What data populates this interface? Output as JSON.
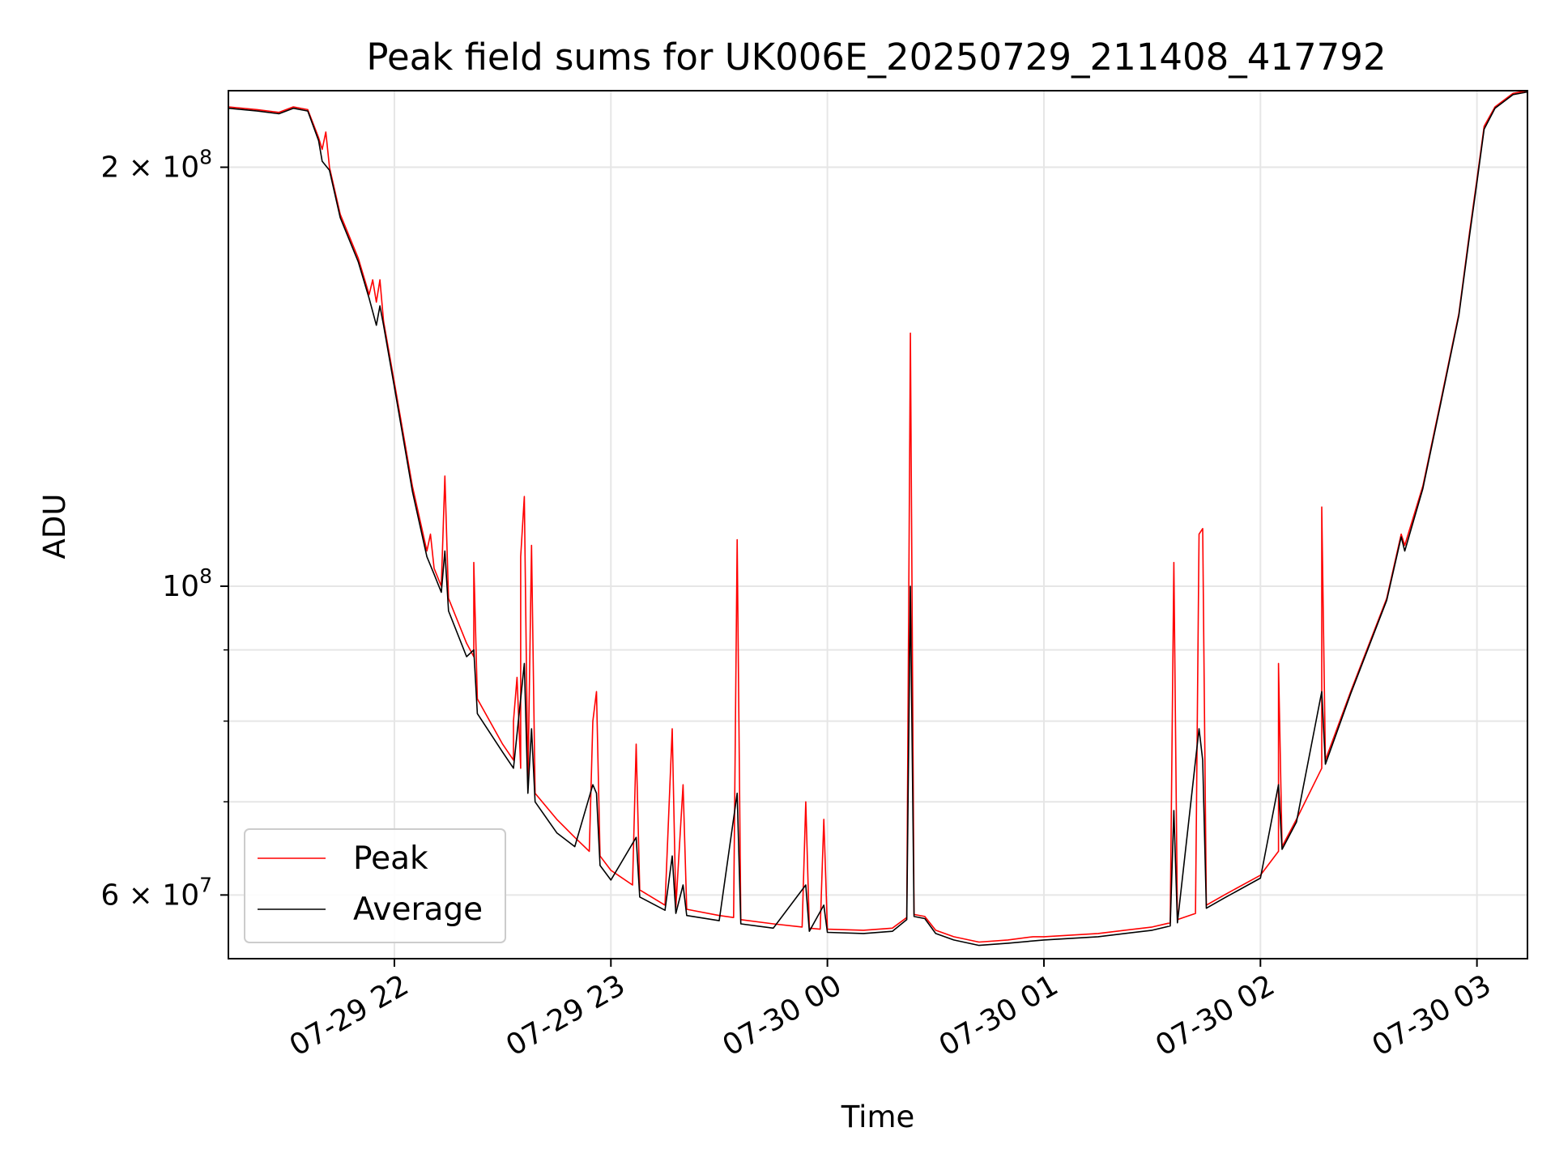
{
  "chart_data": {
    "type": "line",
    "title": "Peak field sums for UK006E_20250729_211408_417792",
    "xlabel": "Time",
    "ylabel": "ADU",
    "yscale": "log",
    "xlim": [
      "2025-07-29 21:14",
      "2025-07-30 03:14"
    ],
    "ylim": [
      54000000,
      227000000
    ],
    "grid": true,
    "legend_position": "lower-left",
    "x_ticks": [
      {
        "value": "2025-07-29 22:00",
        "label": "07-29 22"
      },
      {
        "value": "2025-07-29 23:00",
        "label": "07-29 23"
      },
      {
        "value": "2025-07-30 00:00",
        "label": "07-30 00"
      },
      {
        "value": "2025-07-30 01:00",
        "label": "07-30 01"
      },
      {
        "value": "2025-07-30 02:00",
        "label": "07-30 02"
      },
      {
        "value": "2025-07-30 03:00",
        "label": "07-30 03"
      }
    ],
    "y_ticks_major": [
      {
        "value": 60000000,
        "mantissa": "6 × 10",
        "exp": "7"
      },
      {
        "value": 100000000,
        "mantissa": "10",
        "exp": "8"
      },
      {
        "value": 200000000,
        "mantissa": "2 × 10",
        "exp": "8"
      }
    ],
    "y_ticks_minor": [
      70000000,
      80000000,
      90000000
    ],
    "series": [
      {
        "name": "Peak",
        "color": "#ff0000",
        "points": [
          [
            "2025-07-29 21:14",
            221000000
          ],
          [
            "2025-07-29 21:22",
            220000000
          ],
          [
            "2025-07-29 21:28",
            219000000
          ],
          [
            "2025-07-29 21:32",
            221000000
          ],
          [
            "2025-07-29 21:36",
            220000000
          ],
          [
            "2025-07-29 21:39",
            210000000
          ],
          [
            "2025-07-29 21:40",
            206000000
          ],
          [
            "2025-07-29 21:41",
            212000000
          ],
          [
            "2025-07-29 21:42",
            200000000
          ],
          [
            "2025-07-29 21:45",
            185000000
          ],
          [
            "2025-07-29 21:50",
            172000000
          ],
          [
            "2025-07-29 21:53",
            162000000
          ],
          [
            "2025-07-29 21:54",
            166000000
          ],
          [
            "2025-07-29 21:55",
            160000000
          ],
          [
            "2025-07-29 21:56",
            166000000
          ],
          [
            "2025-07-29 21:57",
            155000000
          ],
          [
            "2025-07-29 22:00",
            140000000
          ],
          [
            "2025-07-29 22:05",
            118000000
          ],
          [
            "2025-07-29 22:09",
            106000000
          ],
          [
            "2025-07-29 22:10",
            109000000
          ],
          [
            "2025-07-29 22:11",
            103000000
          ],
          [
            "2025-07-29 22:13",
            100000000
          ],
          [
            "2025-07-29 22:14",
            120000000
          ],
          [
            "2025-07-29 22:15",
            98000000
          ],
          [
            "2025-07-29 22:20",
            91000000
          ],
          [
            "2025-07-29 22:22",
            89000000
          ],
          [
            "2025-07-29 22:22",
            104000000
          ],
          [
            "2025-07-29 22:23",
            83000000
          ],
          [
            "2025-07-29 22:30",
            77000000
          ],
          [
            "2025-07-29 22:33",
            75000000
          ],
          [
            "2025-07-29 22:33",
            80000000
          ],
          [
            "2025-07-29 22:34",
            86000000
          ],
          [
            "2025-07-29 22:35",
            74000000
          ],
          [
            "2025-07-29 22:35",
            105000000
          ],
          [
            "2025-07-29 22:36",
            116000000
          ],
          [
            "2025-07-29 22:37",
            72000000
          ],
          [
            "2025-07-29 22:38",
            107000000
          ],
          [
            "2025-07-29 22:39",
            71000000
          ],
          [
            "2025-07-29 22:45",
            68000000
          ],
          [
            "2025-07-29 22:50",
            66000000
          ],
          [
            "2025-07-29 22:54",
            64500000
          ],
          [
            "2025-07-29 22:55",
            80000000
          ],
          [
            "2025-07-29 22:56",
            84000000
          ],
          [
            "2025-07-29 22:57",
            64000000
          ],
          [
            "2025-07-29 23:00",
            62500000
          ],
          [
            "2025-07-29 23:06",
            61000000
          ],
          [
            "2025-07-29 23:07",
            77000000
          ],
          [
            "2025-07-29 23:08",
            60500000
          ],
          [
            "2025-07-29 23:15",
            59000000
          ],
          [
            "2025-07-29 23:17",
            79000000
          ],
          [
            "2025-07-29 23:18",
            58800000
          ],
          [
            "2025-07-29 23:20",
            72000000
          ],
          [
            "2025-07-29 23:21",
            58600000
          ],
          [
            "2025-07-29 23:30",
            58000000
          ],
          [
            "2025-07-29 23:34",
            57800000
          ],
          [
            "2025-07-29 23:35",
            108000000
          ],
          [
            "2025-07-29 23:36",
            57600000
          ],
          [
            "2025-07-29 23:45",
            57200000
          ],
          [
            "2025-07-29 23:53",
            56900000
          ],
          [
            "2025-07-29 23:54",
            70000000
          ],
          [
            "2025-07-29 23:55",
            56800000
          ],
          [
            "2025-07-29 23:58",
            56700000
          ],
          [
            "2025-07-29 23:59",
            68000000
          ],
          [
            "2025-07-30 00:00",
            56700000
          ],
          [
            "2025-07-30 00:10",
            56600000
          ],
          [
            "2025-07-30 00:18",
            56800000
          ],
          [
            "2025-07-30 00:22",
            57800000
          ],
          [
            "2025-07-30 00:23",
            152000000
          ],
          [
            "2025-07-30 00:24",
            58100000
          ],
          [
            "2025-07-30 00:27",
            57900000
          ],
          [
            "2025-07-30 00:30",
            56600000
          ],
          [
            "2025-07-30 00:35",
            56000000
          ],
          [
            "2025-07-30 00:42",
            55500000
          ],
          [
            "2025-07-30 00:50",
            55700000
          ],
          [
            "2025-07-30 00:57",
            56000000
          ],
          [
            "2025-07-30 01:00",
            56000000
          ],
          [
            "2025-07-30 01:15",
            56300000
          ],
          [
            "2025-07-30 01:30",
            56900000
          ],
          [
            "2025-07-30 01:35",
            57300000
          ],
          [
            "2025-07-30 01:36",
            104000000
          ],
          [
            "2025-07-30 01:37",
            57600000
          ],
          [
            "2025-07-30 01:42",
            58200000
          ],
          [
            "2025-07-30 01:43",
            109000000
          ],
          [
            "2025-07-30 01:44",
            110000000
          ],
          [
            "2025-07-30 01:45",
            59000000
          ],
          [
            "2025-07-30 01:50",
            60000000
          ],
          [
            "2025-07-30 02:00",
            62000000
          ],
          [
            "2025-07-30 02:05",
            64500000
          ],
          [
            "2025-07-30 02:05",
            88000000
          ],
          [
            "2025-07-30 02:06",
            65000000
          ],
          [
            "2025-07-30 02:10",
            68000000
          ],
          [
            "2025-07-30 02:17",
            74000000
          ],
          [
            "2025-07-30 02:17",
            114000000
          ],
          [
            "2025-07-30 02:18",
            75000000
          ],
          [
            "2025-07-30 02:25",
            84000000
          ],
          [
            "2025-07-30 02:35",
            98000000
          ],
          [
            "2025-07-30 02:39",
            109000000
          ],
          [
            "2025-07-30 02:40",
            107000000
          ],
          [
            "2025-07-30 02:45",
            118000000
          ],
          [
            "2025-07-30 02:50",
            136000000
          ],
          [
            "2025-07-30 02:55",
            157000000
          ],
          [
            "2025-07-30 02:58",
            180000000
          ],
          [
            "2025-07-30 03:00",
            196000000
          ],
          [
            "2025-07-30 03:02",
            214000000
          ],
          [
            "2025-07-30 03:05",
            221000000
          ],
          [
            "2025-07-30 03:10",
            226000000
          ],
          [
            "2025-07-30 03:14",
            227000000
          ]
        ]
      },
      {
        "name": "Average",
        "color": "#000000",
        "points": [
          [
            "2025-07-29 21:14",
            220500000
          ],
          [
            "2025-07-29 21:22",
            219500000
          ],
          [
            "2025-07-29 21:28",
            218500000
          ],
          [
            "2025-07-29 21:32",
            220500000
          ],
          [
            "2025-07-29 21:36",
            219500000
          ],
          [
            "2025-07-29 21:39",
            209000000
          ],
          [
            "2025-07-29 21:40",
            202000000
          ],
          [
            "2025-07-29 21:42",
            199000000
          ],
          [
            "2025-07-29 21:45",
            184000000
          ],
          [
            "2025-07-29 21:50",
            171000000
          ],
          [
            "2025-07-29 21:53",
            161000000
          ],
          [
            "2025-07-29 21:55",
            154000000
          ],
          [
            "2025-07-29 21:56",
            159000000
          ],
          [
            "2025-07-29 21:57",
            154000000
          ],
          [
            "2025-07-29 22:00",
            139000000
          ],
          [
            "2025-07-29 22:05",
            117000000
          ],
          [
            "2025-07-29 22:09",
            105000000
          ],
          [
            "2025-07-29 22:11",
            102000000
          ],
          [
            "2025-07-29 22:13",
            99000000
          ],
          [
            "2025-07-29 22:14",
            106000000
          ],
          [
            "2025-07-29 22:15",
            96000000
          ],
          [
            "2025-07-29 22:20",
            89000000
          ],
          [
            "2025-07-29 22:22",
            90000000
          ],
          [
            "2025-07-29 22:23",
            81000000
          ],
          [
            "2025-07-29 22:30",
            76000000
          ],
          [
            "2025-07-29 22:33",
            74000000
          ],
          [
            "2025-07-29 22:35",
            83000000
          ],
          [
            "2025-07-29 22:36",
            88000000
          ],
          [
            "2025-07-29 22:37",
            71000000
          ],
          [
            "2025-07-29 22:38",
            79000000
          ],
          [
            "2025-07-29 22:39",
            70000000
          ],
          [
            "2025-07-29 22:45",
            66500000
          ],
          [
            "2025-07-29 22:50",
            65000000
          ],
          [
            "2025-07-29 22:55",
            72000000
          ],
          [
            "2025-07-29 22:56",
            71000000
          ],
          [
            "2025-07-29 22:57",
            63000000
          ],
          [
            "2025-07-29 23:00",
            61500000
          ],
          [
            "2025-07-29 23:07",
            66000000
          ],
          [
            "2025-07-29 23:08",
            59800000
          ],
          [
            "2025-07-29 23:15",
            58500000
          ],
          [
            "2025-07-29 23:17",
            64000000
          ],
          [
            "2025-07-29 23:18",
            58200000
          ],
          [
            "2025-07-29 23:20",
            61000000
          ],
          [
            "2025-07-29 23:21",
            58000000
          ],
          [
            "2025-07-29 23:30",
            57500000
          ],
          [
            "2025-07-29 23:35",
            71000000
          ],
          [
            "2025-07-29 23:36",
            57200000
          ],
          [
            "2025-07-29 23:45",
            56800000
          ],
          [
            "2025-07-29 23:54",
            61000000
          ],
          [
            "2025-07-29 23:55",
            56500000
          ],
          [
            "2025-07-29 23:59",
            59000000
          ],
          [
            "2025-07-30 00:00",
            56400000
          ],
          [
            "2025-07-30 00:10",
            56300000
          ],
          [
            "2025-07-30 00:18",
            56500000
          ],
          [
            "2025-07-30 00:22",
            57600000
          ],
          [
            "2025-07-30 00:23",
            100000000
          ],
          [
            "2025-07-30 00:24",
            57900000
          ],
          [
            "2025-07-30 00:27",
            57700000
          ],
          [
            "2025-07-30 00:30",
            56300000
          ],
          [
            "2025-07-30 00:35",
            55700000
          ],
          [
            "2025-07-30 00:42",
            55200000
          ],
          [
            "2025-07-30 00:50",
            55400000
          ],
          [
            "2025-07-30 01:00",
            55700000
          ],
          [
            "2025-07-30 01:15",
            56000000
          ],
          [
            "2025-07-30 01:30",
            56600000
          ],
          [
            "2025-07-30 01:35",
            57000000
          ],
          [
            "2025-07-30 01:36",
            69000000
          ],
          [
            "2025-07-30 01:37",
            57300000
          ],
          [
            "2025-07-30 01:43",
            79000000
          ],
          [
            "2025-07-30 01:44",
            75000000
          ],
          [
            "2025-07-30 01:45",
            58700000
          ],
          [
            "2025-07-30 01:50",
            59700000
          ],
          [
            "2025-07-30 02:00",
            61700000
          ],
          [
            "2025-07-30 02:05",
            72000000
          ],
          [
            "2025-07-30 02:06",
            64700000
          ],
          [
            "2025-07-30 02:10",
            67700000
          ],
          [
            "2025-07-30 02:17",
            84000000
          ],
          [
            "2025-07-30 02:18",
            74500000
          ],
          [
            "2025-07-30 02:25",
            83700000
          ],
          [
            "2025-07-30 02:35",
            97700000
          ],
          [
            "2025-07-30 02:39",
            108500000
          ],
          [
            "2025-07-30 02:40",
            106000000
          ],
          [
            "2025-07-30 02:45",
            117500000
          ],
          [
            "2025-07-30 02:50",
            135500000
          ],
          [
            "2025-07-30 02:55",
            156500000
          ],
          [
            "2025-07-30 02:58",
            179000000
          ],
          [
            "2025-07-30 03:00",
            195000000
          ],
          [
            "2025-07-30 03:02",
            213000000
          ],
          [
            "2025-07-30 03:05",
            220500000
          ],
          [
            "2025-07-30 03:10",
            225500000
          ],
          [
            "2025-07-30 03:14",
            226500000
          ]
        ]
      }
    ]
  }
}
